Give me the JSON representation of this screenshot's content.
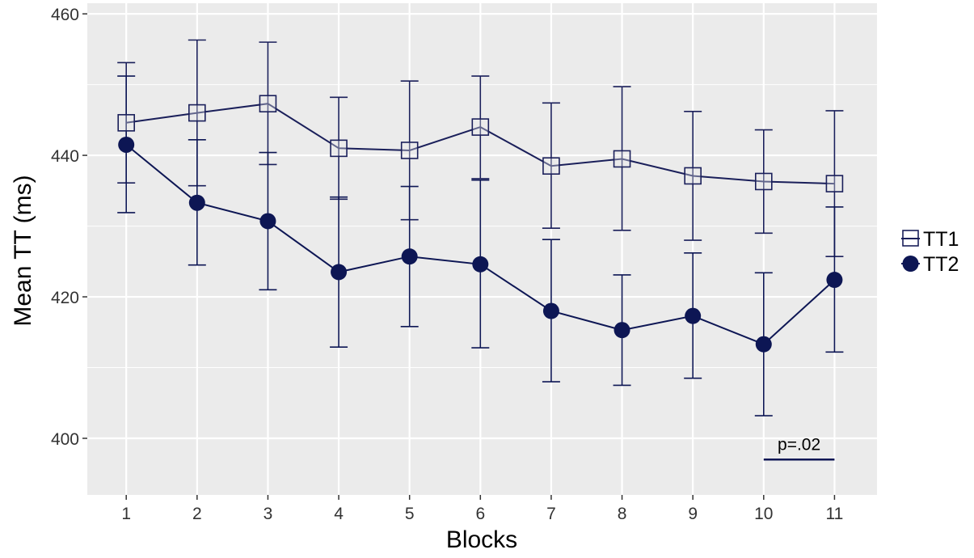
{
  "chart_data": {
    "type": "line",
    "title": "",
    "xlabel": "Blocks",
    "ylabel": "Mean TT (ms)",
    "x": [
      1,
      2,
      3,
      4,
      5,
      6,
      7,
      8,
      9,
      10,
      11
    ],
    "x_tick_labels": [
      "1",
      "2",
      "3",
      "4",
      "5",
      "6",
      "7",
      "8",
      "9",
      "10",
      "11"
    ],
    "xlim": [
      0.45,
      11.6
    ],
    "ylim": [
      392,
      461.5
    ],
    "y_ticks": [
      400,
      420,
      440,
      460
    ],
    "y_tick_labels": [
      "400",
      "420",
      "440",
      "460"
    ],
    "grid": true,
    "legend_placement": "right",
    "series": [
      {
        "name": "TT1",
        "marker": "open-square",
        "color": "#1a1f5a",
        "values": [
          444.6,
          446.0,
          447.3,
          441.0,
          440.7,
          444.0,
          438.5,
          439.5,
          437.1,
          436.3,
          436.0
        ],
        "error_low": [
          436.1,
          435.7,
          438.7,
          433.8,
          430.9,
          436.7,
          429.7,
          429.4,
          428.0,
          429.0,
          425.7
        ],
        "error_high": [
          453.1,
          456.3,
          456.0,
          448.2,
          450.5,
          451.2,
          447.4,
          449.7,
          446.2,
          443.6,
          446.3
        ]
      },
      {
        "name": "TT2",
        "marker": "filled-circle",
        "color": "#0d1654",
        "values": [
          441.5,
          433.3,
          430.7,
          423.5,
          425.7,
          424.6,
          418.0,
          415.3,
          417.3,
          413.3,
          422.4
        ],
        "error_low": [
          431.9,
          424.5,
          421.0,
          412.9,
          415.8,
          412.8,
          408.0,
          407.5,
          408.5,
          403.2,
          412.2
        ],
        "error_high": [
          451.2,
          442.2,
          440.4,
          434.1,
          435.6,
          436.5,
          428.1,
          423.1,
          426.2,
          423.4,
          432.7
        ]
      }
    ],
    "annotations": [
      {
        "text": "p=.02",
        "x_start": 10,
        "x_end": 11,
        "y": 397
      }
    ],
    "colors": {
      "panel_background": "#ebebeb",
      "grid": "#ffffff",
      "series_line": "#1a1f5a"
    }
  }
}
